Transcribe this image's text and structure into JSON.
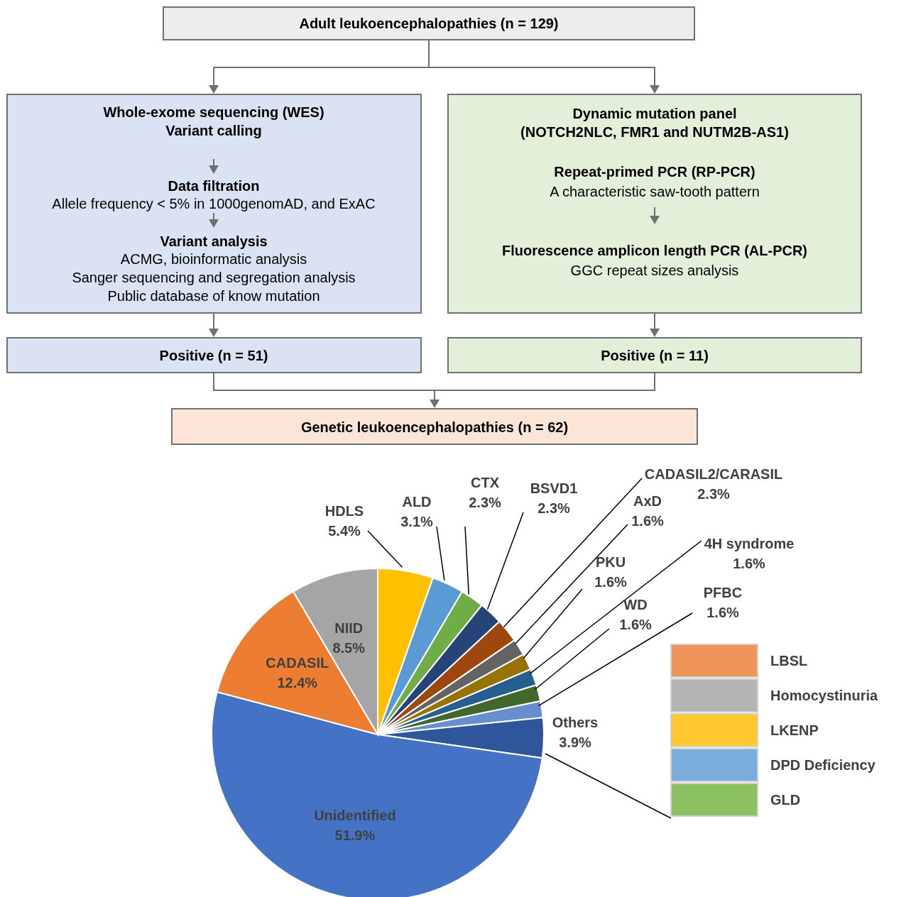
{
  "chart_data": [
    {
      "type": "other",
      "annotations": [
        "Adult leukoencephalopathies (n = 129)",
        "Whole-exome sequencing (WES)",
        "Variant calling",
        "Data filtration",
        "Allele frequency  < 5% in 1000genomAD, and ExAC",
        "Variant analysis",
        "ACMG, bioinformatic analysis",
        "Sanger sequencing and segregation analysis",
        "Public database of know mutation",
        "Dynamic mutation panel",
        "(NOTCH2NLC, FMR1 and NUTM2B-AS1)",
        "Repeat-primed PCR (RP-PCR)",
        "A characteristic saw-tooth pattern",
        "Fluorescence amplicon length PCR (AL-PCR)",
        "GGC repeat sizes analysis",
        "Positive (n = 51)",
        "Positive (n = 11)",
        "Genetic leukoencephalopathies (n = 62)"
      ]
    },
    {
      "type": "pie",
      "categories": [
        "HDLS",
        "ALD",
        "CTX",
        "BSVD1",
        "CADASIL2/CARASIL",
        "AxD",
        "PKU",
        "4H syndrome",
        "WD",
        "PFBC",
        "Others",
        "Unidentified",
        "CADASIL",
        "NIID"
      ],
      "values": [
        5.4,
        3.1,
        2.3,
        2.3,
        2.3,
        1.6,
        1.6,
        1.6,
        1.6,
        1.6,
        3.9,
        51.9,
        12.4,
        8.5
      ],
      "value_labels": [
        "5.4%",
        "3.1%",
        "2.3%",
        "2.3%",
        "2.3%",
        "1.6%",
        "1.6%",
        "1.6%",
        "1.6%",
        "1.6%",
        "3.9%",
        "51.9%",
        "12.4%",
        "8.5%"
      ],
      "colors": [
        "#ffc000",
        "#5b9bd5",
        "#70ad47",
        "#264478",
        "#9e480e",
        "#636363",
        "#997300",
        "#255e91",
        "#43682b",
        "#698ed0",
        "#2f559a",
        "#4472c4",
        "#ed7d31",
        "#a5a5a5"
      ]
    },
    {
      "type": "other",
      "categories": [
        "LBSL",
        "Homocystinuria",
        "LKENP",
        "DPD Deficiency",
        "GLD"
      ],
      "colors": [
        "#f0955a",
        "#b4b4b4",
        "#ffca30",
        "#7aacdc",
        "#8cc162"
      ]
    }
  ]
}
